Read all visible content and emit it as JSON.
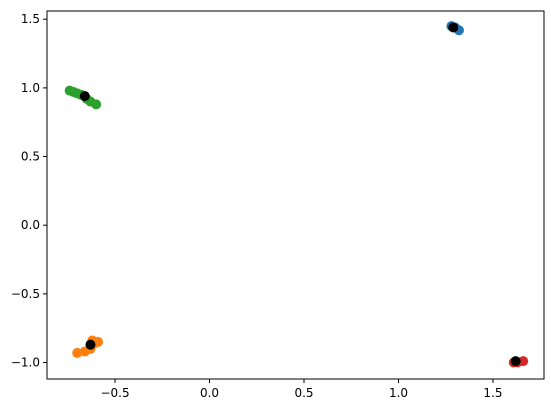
{
  "chart_data": {
    "type": "scatter",
    "series": [
      {
        "color": "#1f77b4",
        "x": [
          1.28,
          1.3,
          1.32
        ],
        "y": [
          1.45,
          1.44,
          1.42
        ]
      },
      {
        "color": "#2ca02c",
        "x": [
          -0.74,
          -0.72,
          -0.7,
          -0.68,
          -0.65,
          -0.63,
          -0.6
        ],
        "y": [
          0.98,
          0.97,
          0.96,
          0.95,
          0.92,
          0.9,
          0.88
        ]
      },
      {
        "color": "#ff7f0e",
        "x": [
          -0.7,
          -0.66,
          -0.63,
          -0.61,
          -0.59,
          -0.62
        ],
        "y": [
          -0.93,
          -0.92,
          -0.9,
          -0.86,
          -0.85,
          -0.84
        ]
      },
      {
        "color": "#d62728",
        "x": [
          1.61,
          1.63,
          1.66
        ],
        "y": [
          -1.0,
          -1.0,
          -0.99
        ]
      },
      {
        "color": "#000000",
        "x": [
          1.29,
          -0.66,
          -0.63,
          1.62
        ],
        "y": [
          1.44,
          0.94,
          -0.87,
          -0.99
        ]
      }
    ],
    "xlim": [
      -0.86,
      1.77
    ],
    "ylim": [
      -1.12,
      1.56
    ],
    "xticks": [
      {
        "value": -0.5,
        "label": "−0.5"
      },
      {
        "value": 0,
        "label": "0.0"
      },
      0.5,
      {
        "value": 1,
        "label": "1.0"
      },
      1.5
    ],
    "yticks": [
      {
        "value": -1,
        "label": "−1.0"
      },
      {
        "value": -0.5,
        "label": "−0.5"
      },
      {
        "value": 0,
        "label": "0.0"
      },
      0.5,
      {
        "value": 1,
        "label": "1.0"
      },
      1.5
    ]
  }
}
